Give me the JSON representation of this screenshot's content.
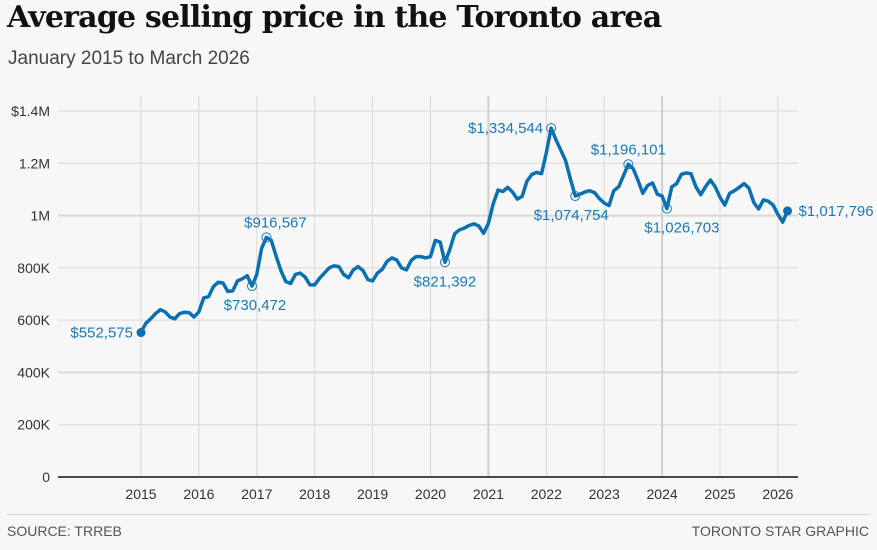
{
  "header": {
    "title": "Average selling price in the Toronto area",
    "subtitle": "January 2015 to March 2026"
  },
  "footer": {
    "source": "SOURCE: TRREB",
    "credit": "TORONTO STAR GRAPHIC"
  },
  "colors": {
    "line": "#0a70b0",
    "annotation": "#1a7ab5",
    "grid": "#d9d9d9",
    "axis": "#111111",
    "background": "#f7f7f7"
  },
  "chart_data": {
    "type": "line",
    "title": "Average selling price in the Toronto area",
    "subtitle": "January 2015 to March 2026",
    "xlabel": "",
    "ylabel": "",
    "x_start": "2015-01",
    "x_end": "2026-03",
    "frequency": "monthly",
    "x_ticks": [
      "2015",
      "2016",
      "2017",
      "2018",
      "2019",
      "2020",
      "2021",
      "2022",
      "2023",
      "2024",
      "2025",
      "2026"
    ],
    "y_ticks": [
      {
        "value": 0,
        "label": "0"
      },
      {
        "value": 200000,
        "label": "200K"
      },
      {
        "value": 400000,
        "label": "400K"
      },
      {
        "value": 600000,
        "label": "600K"
      },
      {
        "value": 800000,
        "label": "800K"
      },
      {
        "value": 1000000,
        "label": "1M"
      },
      {
        "value": 1200000,
        "label": "1.2M"
      },
      {
        "value": 1400000,
        "label": "$1.4M"
      }
    ],
    "ylim": [
      0,
      1400000
    ],
    "grid": true,
    "legend": "none",
    "series": [
      {
        "name": "Average selling price",
        "values": [
          552575,
          588000,
          605000,
          625000,
          640000,
          632000,
          612000,
          605000,
          625000,
          630000,
          628000,
          612000,
          632000,
          685000,
          690000,
          728000,
          745000,
          742000,
          710000,
          712000,
          750000,
          758000,
          770000,
          730472,
          775000,
          875000,
          916567,
          905000,
          845000,
          790000,
          748000,
          740000,
          775000,
          780000,
          765000,
          735000,
          735000,
          760000,
          780000,
          800000,
          808000,
          805000,
          775000,
          762000,
          792000,
          805000,
          790000,
          755000,
          750000,
          780000,
          795000,
          825000,
          838000,
          830000,
          800000,
          792000,
          828000,
          843000,
          843000,
          838000,
          843000,
          905000,
          898000,
          821392,
          870000,
          930000,
          945000,
          952000,
          962000,
          968000,
          960000,
          932000,
          970000,
          1045000,
          1098000,
          1092000,
          1108000,
          1090000,
          1063000,
          1074000,
          1132000,
          1157000,
          1165000,
          1160000,
          1240000,
          1334544,
          1290000,
          1250000,
          1210000,
          1140000,
          1074754,
          1082000,
          1090000,
          1095000,
          1088000,
          1065000,
          1048000,
          1038000,
          1095000,
          1110000,
          1153000,
          1196101,
          1180000,
          1135000,
          1085000,
          1115000,
          1125000,
          1082000,
          1075000,
          1026703,
          1110000,
          1122000,
          1158000,
          1163000,
          1160000,
          1110000,
          1080000,
          1110000,
          1136000,
          1110000,
          1070000,
          1040000,
          1085000,
          1095000,
          1108000,
          1122000,
          1105000,
          1050000,
          1025000,
          1060000,
          1055000,
          1040000,
          1005000,
          975000,
          1017796
        ]
      }
    ],
    "annotations": [
      {
        "date": "2015-01",
        "value": 552575,
        "label": "$552,575",
        "marker": "filled",
        "position": "left"
      },
      {
        "date": "2016-12",
        "value": 730472,
        "label": "$730,472",
        "marker": "ring",
        "position": "below"
      },
      {
        "date": "2017-03",
        "value": 916567,
        "label": "$916,567",
        "marker": "ring",
        "position": "above"
      },
      {
        "date": "2020-04",
        "value": 821392,
        "label": "$821,392",
        "marker": "ring",
        "position": "below"
      },
      {
        "date": "2022-02",
        "value": 1334544,
        "label": "$1,334,544",
        "marker": "ring",
        "position": "left"
      },
      {
        "date": "2022-07",
        "value": 1074754,
        "label": "$1,074,754",
        "marker": "ring",
        "position": "below"
      },
      {
        "date": "2023-06",
        "value": 1196101,
        "label": "$1,196,101",
        "marker": "ring",
        "position": "above"
      },
      {
        "date": "2024-02",
        "value": 1026703,
        "label": "$1,026,703",
        "marker": "ring",
        "position": "below"
      },
      {
        "date": "2026-03",
        "value": 1017796,
        "label": "$1,017,796",
        "marker": "filled",
        "position": "right"
      }
    ]
  }
}
